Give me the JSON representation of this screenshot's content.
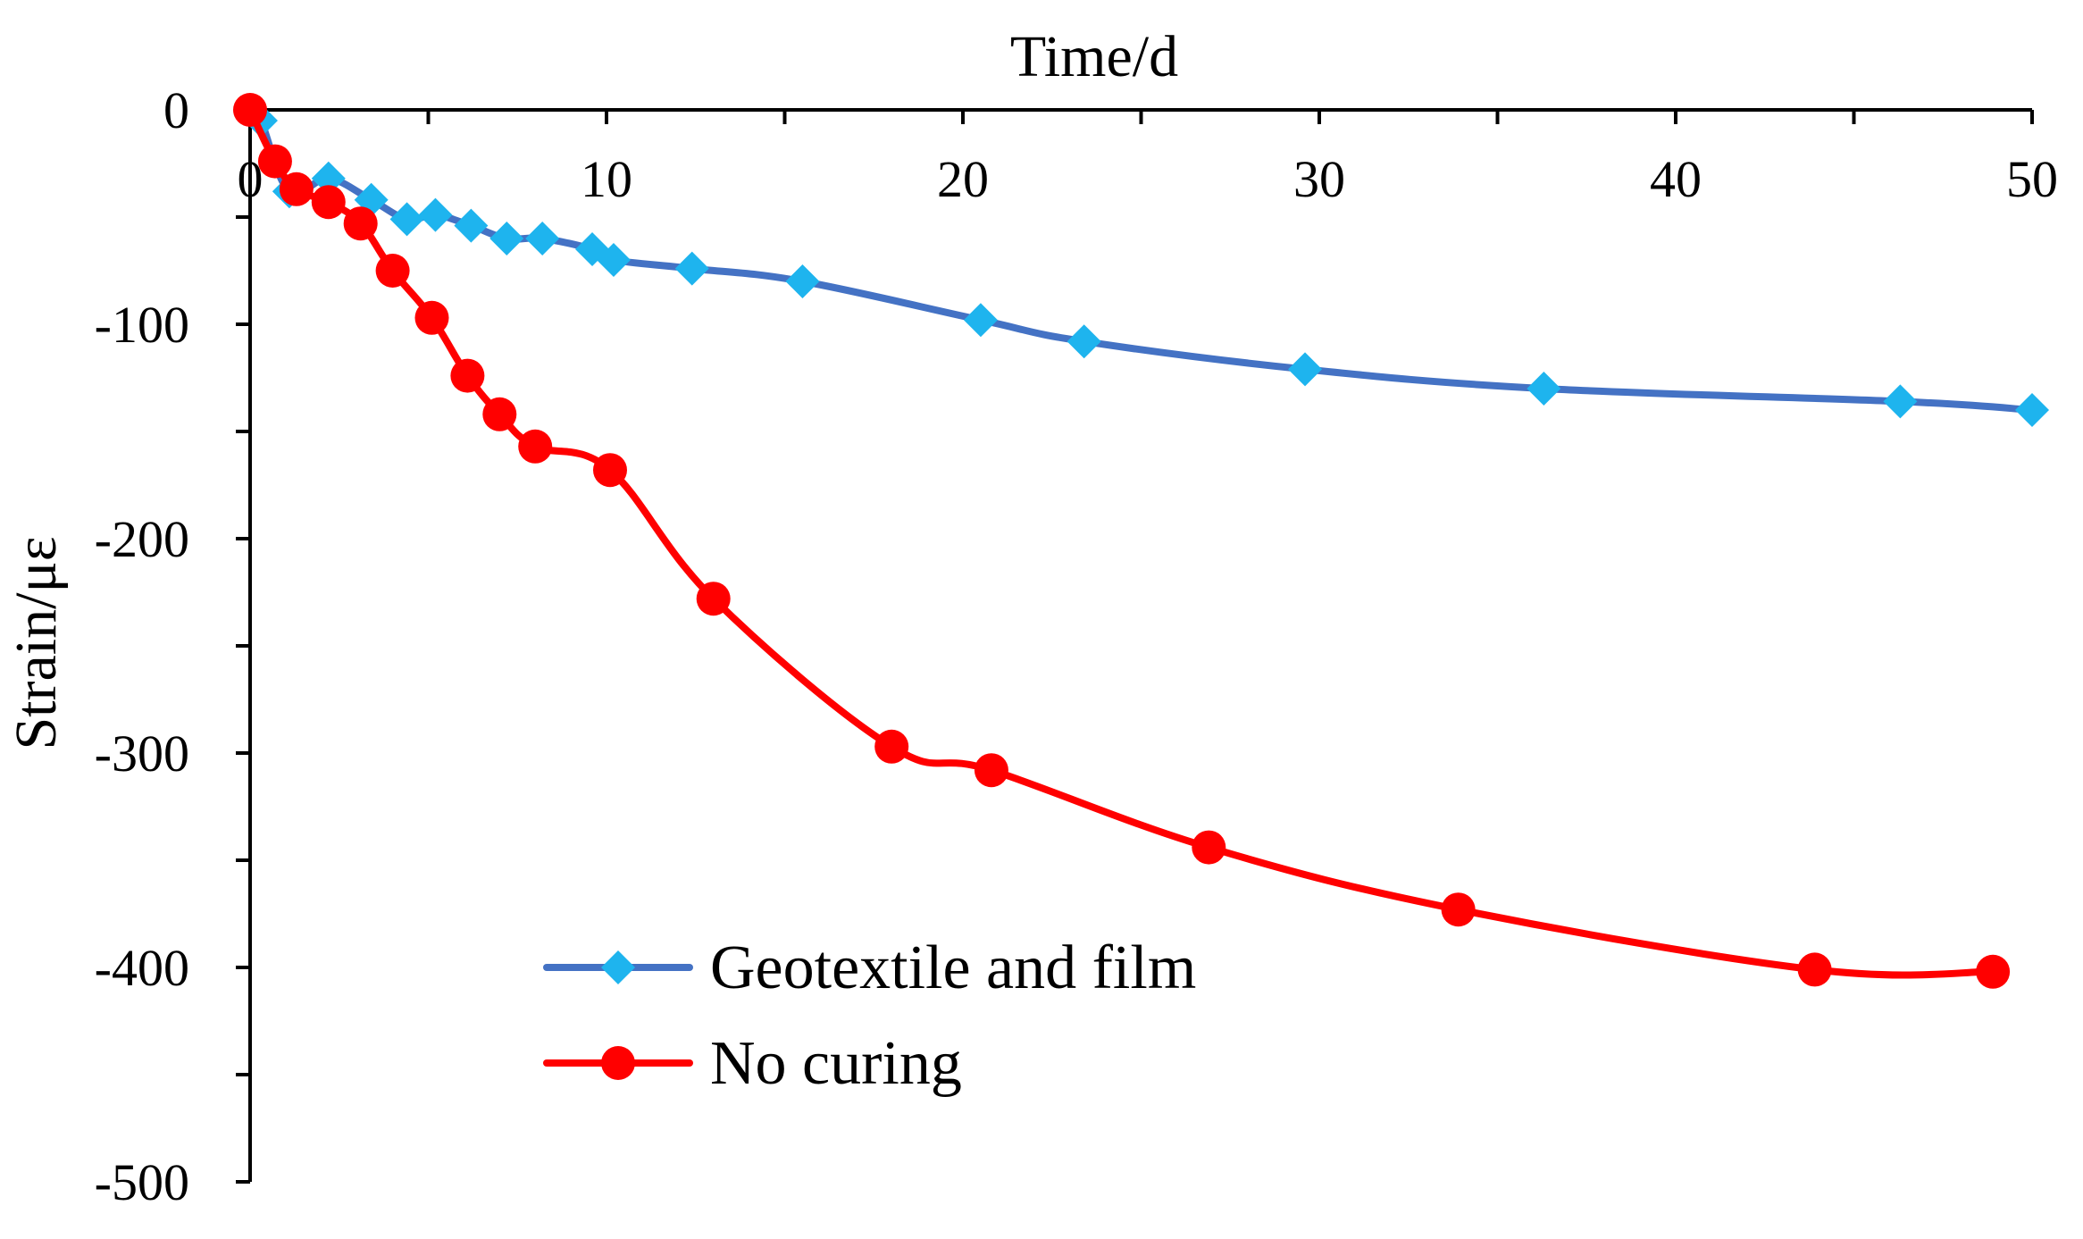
{
  "chart_data": {
    "type": "line",
    "title": "",
    "xlabel": "Time/d",
    "ylabel": "Strain/με",
    "xlim": [
      0,
      50
    ],
    "ylim": [
      -500,
      0
    ],
    "x_ticks": [
      0,
      10,
      20,
      30,
      40,
      50
    ],
    "y_ticks": [
      0,
      -100,
      -200,
      -300,
      -400,
      -500
    ],
    "x_axis_position": "top",
    "grid": false,
    "legend_position": "bottom-center",
    "series": [
      {
        "name": "Geotextile and film",
        "color": "#4472C4",
        "marker_color": "#1EB4EE",
        "marker": "diamond",
        "x": [
          0,
          0.3,
          1.1,
          2.2,
          3.4,
          4.4,
          5.2,
          6.2,
          7.2,
          8.2,
          9.6,
          10.2,
          12.4,
          15.5,
          20.5,
          23.4,
          29.6,
          36.3,
          46.3,
          50
        ],
        "y": [
          0,
          -5,
          -38,
          -32,
          -42,
          -51,
          -49,
          -54,
          -60,
          -60,
          -65,
          -70,
          -74,
          -80,
          -98,
          -108,
          -121,
          -130,
          -136,
          -140
        ]
      },
      {
        "name": "No curing",
        "color": "#FF0000",
        "marker_color": "#FF0000",
        "marker": "circle",
        "x": [
          0,
          0.7,
          1.3,
          2.2,
          3.1,
          4.0,
          5.1,
          6.1,
          7.0,
          8.0,
          10.1,
          13.0,
          18.0,
          20.8,
          26.9,
          33.9,
          43.9,
          48.9
        ],
        "y": [
          0,
          -24,
          -37,
          -43,
          -53,
          -75,
          -97,
          -124,
          -142,
          -157,
          -168,
          -228,
          -297,
          -308,
          -344,
          -373,
          -401,
          -402
        ]
      }
    ]
  }
}
